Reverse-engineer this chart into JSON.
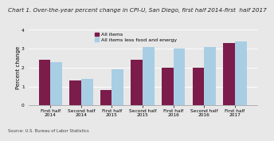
{
  "title": "Chart 1. Over-the-year percent change in CPI-U, San Diego, first half 2014-first  half 2017",
  "ylabel": "Percent change",
  "source": "Source: U.S. Bureau of Labor Statistics",
  "categories": [
    "First half 2014",
    "Second half\n2014",
    "First half\n2015",
    "Second half\n2015",
    "First half\n2016",
    "Second half\n2016",
    "First half\n2017"
  ],
  "xtick_labels": [
    "First half 2014",
    "Second half 2014",
    "First half 2015",
    "Second half 2015",
    "First half 2016",
    "Second half 2016",
    "First half 2017"
  ],
  "all_items": [
    2.4,
    1.3,
    0.8,
    2.4,
    2.0,
    2.0,
    3.3
  ],
  "all_items_less_food_energy": [
    2.3,
    1.4,
    1.9,
    3.1,
    3.0,
    3.1,
    3.4
  ],
  "color_all_items": "#7B1C4B",
  "color_less_food_energy": "#A8CEE4",
  "bg_color": "#E8E8E8",
  "ylim": [
    0,
    4.0
  ],
  "yticks": [
    0.0,
    1.0,
    2.0,
    3.0,
    4.0
  ],
  "bar_width": 0.38,
  "legend_labels": [
    "All items",
    "All items less food and energy"
  ],
  "title_fontsize": 5.2,
  "ylabel_fontsize": 5.0,
  "tick_fontsize": 4.2,
  "legend_fontsize": 4.5,
  "source_fontsize": 3.8
}
